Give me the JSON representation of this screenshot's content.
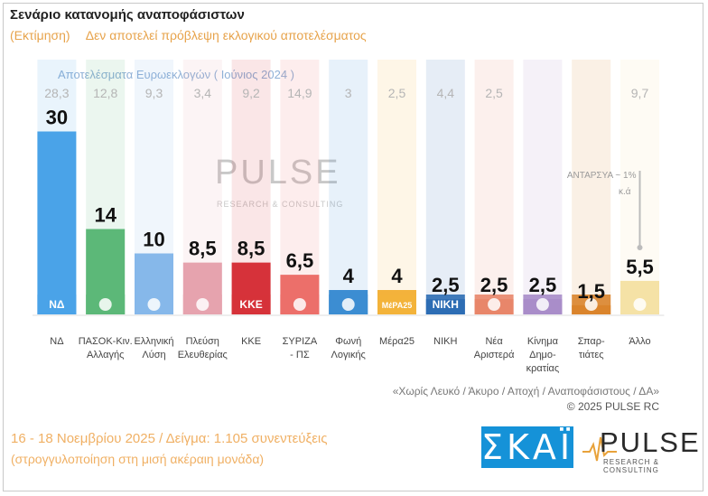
{
  "title": "Σενάριο κατανομής αναποφάσιστων",
  "subtitle": {
    "part1": "(Εκτίμηση)",
    "part2": "Δεν αποτελεί πρόβλεψη εκλογικού αποτελέσματος"
  },
  "reference_caption": "Αποτελέσματα Ευρωεκλογών ( Ιούνιος 2024 )",
  "watermark": {
    "name": "PULSE",
    "tagline": "RESEARCH & CONSULTING"
  },
  "chart_data": {
    "type": "bar",
    "categories": [
      "ΝΔ",
      "ΠΑΣΟΚ-Κιν. Αλλαγής",
      "Ελληνική Λύση",
      "Πλεύση Ελευθερίας",
      "ΚΚΕ",
      "ΣΥΡΙΖΑ - ΠΣ",
      "Φωνή Λογικής",
      "Μέρα25",
      "ΝΙΚΗ",
      "Νέα Αριστερά",
      "Κίνημα Δημο- κρατίας",
      "Σπαρ- τιάτες",
      "Άλλο"
    ],
    "category_lines": [
      [
        "ΝΔ"
      ],
      [
        "ΠΑΣΟΚ-Κιν.",
        "Αλλαγής"
      ],
      [
        "Ελληνική",
        "Λύση"
      ],
      [
        "Πλεύση",
        "Ελευθερίας"
      ],
      [
        "ΚΚΕ"
      ],
      [
        "ΣΥΡΙΖΑ",
        "- ΠΣ"
      ],
      [
        "Φωνή",
        "Λογικής"
      ],
      [
        "Μέρα25"
      ],
      [
        "ΝΙΚΗ"
      ],
      [
        "Νέα",
        "Αριστερά"
      ],
      [
        "Κίνημα",
        "Δημο-",
        "κρατίας"
      ],
      [
        "Σπαρ-",
        "τιάτες"
      ],
      [
        "Άλλο"
      ]
    ],
    "series": [
      {
        "values": [
          30,
          14,
          10,
          8.5,
          8.5,
          6.5,
          4,
          4,
          2.5,
          2.5,
          2.5,
          1.5,
          5.5
        ],
        "labels": [
          "30",
          "14",
          "10",
          "8,5",
          "8,5",
          "6,5",
          "4",
          "4",
          "2,5",
          "2,5",
          "2,5",
          "1,5",
          "5,5"
        ]
      }
    ],
    "reference_values": [
      "28,3",
      "12,8",
      "9,3",
      "3,4",
      "9,2",
      "14,9",
      "3",
      "2,5",
      "4,4",
      "2,5",
      "",
      "",
      "9,7"
    ],
    "annotation": {
      "text": "ΑΝΤΑΡΣΥΑ ~ 1%",
      "sub": "κ.ά"
    },
    "colors": [
      "#4aa3e8",
      "#5cb878",
      "#86b8ea",
      "#e6a3ae",
      "#d6323a",
      "#ec6f6a",
      "#3c8dd2",
      "#f3b23b",
      "#2e6db4",
      "#e8866a",
      "#a98dc9",
      "#d9842c",
      "#f5e2a6"
    ],
    "logo_text": [
      "ΝΔ",
      "",
      "",
      "",
      "ΚΚΕ",
      "",
      "",
      "ΜέΡΑ25",
      "ΝΙΚΗ",
      "",
      "",
      "",
      ""
    ],
    "ylim": [
      0,
      32
    ]
  },
  "footnote": "«Χωρίς Λευκό / Άκυρο / Αποχή / Αναποφάσιστους / ΔΑ»",
  "copyright": "© 2025 PULSE RC",
  "fieldwork": "16 - 18 Νοεμβρίου 2025 / Δείγμα: 1.105 συνεντεύξεις",
  "rounding_note": "(στρογγυλοποίηση στη μισή ακέραιη μονάδα)",
  "broadcaster_logo": "ΣΚΑΪ",
  "pollster_logo": {
    "name": "PULSE",
    "tagline": "RESEARCH & CONSULTING"
  }
}
